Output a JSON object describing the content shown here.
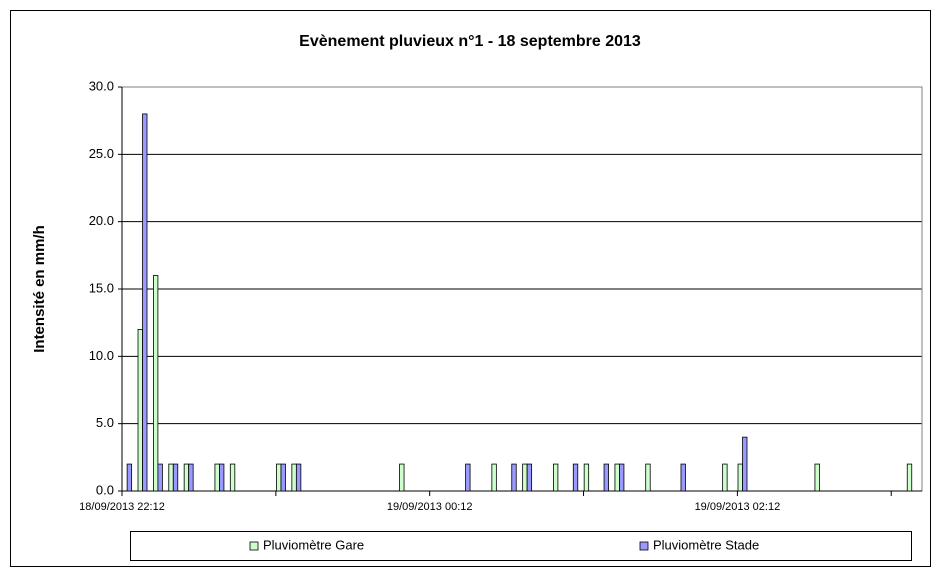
{
  "chart_data": {
    "type": "bar",
    "title": "Evènement pluvieux n°1 - 18 septembre 2013",
    "y_label": "Intensité en mm/h",
    "x": [
      "18/09/2013 22:14",
      "18/09/2013 22:20",
      "18/09/2013 22:26",
      "18/09/2013 22:32",
      "18/09/2013 22:38",
      "18/09/2013 22:50",
      "18/09/2013 22:56",
      "18/09/2013 23:14",
      "18/09/2013 23:20",
      "19/09/2013 00:02",
      "19/09/2013 00:26",
      "19/09/2013 00:38",
      "19/09/2013 00:44",
      "19/09/2013 00:50",
      "19/09/2013 01:02",
      "19/09/2013 01:08",
      "19/09/2013 01:14",
      "19/09/2013 01:20",
      "19/09/2013 01:26",
      "19/09/2013 01:38",
      "19/09/2013 01:50",
      "19/09/2013 02:08",
      "19/09/2013 02:14",
      "19/09/2013 02:44",
      "19/09/2013 03:20"
    ],
    "series": [
      {
        "name": "Pluviomètre Gare",
        "color": "#ccffcc",
        "values": [
          null,
          12,
          16,
          2,
          2,
          2,
          2,
          2,
          2,
          2,
          null,
          2,
          null,
          2,
          2,
          null,
          2,
          null,
          2,
          2,
          null,
          2,
          2,
          2,
          2
        ]
      },
      {
        "name": "Pluviomètre Stade",
        "color": "#9999ff",
        "values": [
          2,
          28,
          2,
          2,
          2,
          2,
          null,
          2,
          2,
          null,
          2,
          null,
          2,
          2,
          null,
          2,
          null,
          2,
          2,
          null,
          2,
          null,
          4,
          null,
          null
        ]
      }
    ],
    "xlim": [
      "18/09/2013 22:12",
      "19/09/2013 03:24"
    ],
    "xticks": [
      "18/09/2013 22:12",
      "19/09/2013 00:12",
      "19/09/2013 02:12"
    ],
    "xminorticks": [
      "18/09/2013 23:12",
      "19/09/2013 01:12",
      "19/09/2013 03:12"
    ],
    "ylim": [
      0,
      30
    ],
    "yticks": [
      {
        "value": 0,
        "label": "0.0"
      },
      {
        "value": 5,
        "label": "5.0"
      },
      {
        "value": 10,
        "label": "10.0"
      },
      {
        "value": 15,
        "label": "15.0"
      },
      {
        "value": 20,
        "label": "20.0"
      },
      {
        "value": 25,
        "label": "25.0"
      },
      {
        "value": 30,
        "label": "30.0"
      }
    ],
    "grid": true,
    "legend": "bottom"
  }
}
